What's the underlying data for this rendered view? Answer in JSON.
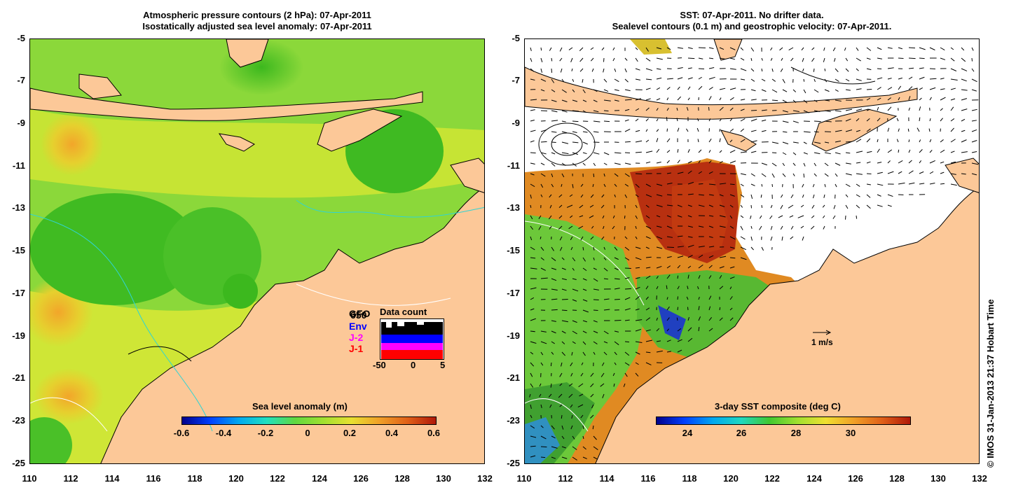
{
  "left_panel": {
    "title_line1": "Atmospheric pressure contours (2 hPa): 07-Apr-2011",
    "title_line2": "Isostatically adjusted sea level anomaly: 07-Apr-2011",
    "colorbar_title": "Sea level anomaly (m)",
    "colorbar_ticks": [
      "-0.6",
      "-0.4",
      "-0.2",
      "0",
      "0.2",
      "0.4",
      "0.6"
    ],
    "inset": {
      "title": "Data count",
      "legend": [
        {
          "label": "GFO",
          "color": "#000000"
        },
        {
          "label": "Env",
          "color": "#0000ff"
        },
        {
          "label": "J-2",
          "color": "#ff00ff"
        },
        {
          "label": "J-1",
          "color": "#ff0000"
        }
      ],
      "overlay_label": "650",
      "x_ticks": [
        "-50",
        "0",
        "5"
      ]
    }
  },
  "right_panel": {
    "title_line1": "SST: 07-Apr-2011. No drifter data.",
    "title_line2": "Sealevel contours (0.1 m) and geostrophic velocity: 07-Apr-2011.",
    "colorbar_title": "3-day SST composite (deg C)",
    "colorbar_ticks": [
      "24",
      "26",
      "28",
      "30"
    ],
    "velocity_scale_label": "1 m/s"
  },
  "axes": {
    "y_ticks": [
      "-5",
      "-7",
      "-9",
      "-11",
      "-13",
      "-15",
      "-17",
      "-19",
      "-21",
      "-23",
      "-25"
    ],
    "x_ticks": [
      "110",
      "112",
      "114",
      "116",
      "118",
      "120",
      "122",
      "124",
      "126",
      "128",
      "130",
      "132"
    ]
  },
  "credit": "© IMOS 31-Jan-2013 21:37 Hobart Time",
  "colors": {
    "land": "#fcc898",
    "ocean_green": "#6fd33b",
    "ocean_yellow": "#d8ec2e",
    "sst_orange": "#e88a1c",
    "sst_red": "#b01808"
  }
}
